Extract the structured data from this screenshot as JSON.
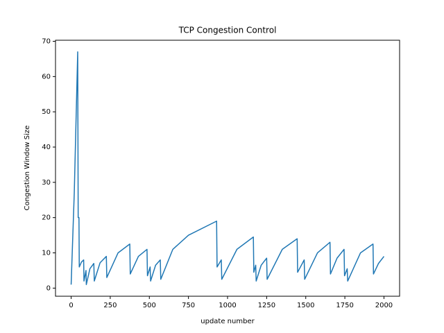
{
  "chart_data": {
    "type": "line",
    "title": "TCP Congestion Control",
    "x_label": "update number",
    "y_label": "Congestion Window Size",
    "x": [
      0,
      20,
      42,
      45,
      50,
      52,
      66,
      80,
      82,
      95,
      97,
      120,
      145,
      148,
      185,
      225,
      228,
      300,
      375,
      378,
      430,
      485,
      488,
      505,
      508,
      540,
      570,
      573,
      650,
      750,
      930,
      933,
      960,
      963,
      1060,
      1165,
      1168,
      1180,
      1183,
      1215,
      1250,
      1253,
      1350,
      1445,
      1448,
      1490,
      1493,
      1575,
      1655,
      1658,
      1700,
      1745,
      1748,
      1765,
      1768,
      1850,
      1930,
      1933,
      1965,
      2000
    ],
    "series": [
      {
        "color": "#1f77b4",
        "values": [
          1,
          27,
          67,
          20,
          20,
          6,
          7.4,
          8,
          2,
          5,
          1,
          5.5,
          7,
          2,
          7.2,
          9,
          3,
          10,
          12.5,
          4,
          9,
          11,
          3.5,
          6,
          2,
          6.5,
          8,
          2.5,
          11,
          15,
          19,
          6,
          8,
          2.5,
          11,
          14.5,
          4.5,
          6.5,
          2,
          6.5,
          8.5,
          2.5,
          11,
          14,
          4.5,
          8,
          2.5,
          10,
          13,
          4,
          8.5,
          11,
          3.5,
          5.5,
          2,
          10,
          12.5,
          4,
          7,
          9
        ]
      }
    ],
    "xlim": [
      -100,
      2100
    ],
    "ylim": [
      -2.3,
      70.3
    ],
    "xticks": [
      0,
      250,
      500,
      750,
      1000,
      1250,
      1500,
      1750,
      2000
    ],
    "yticks": [
      0,
      10,
      20,
      30,
      40,
      50,
      60,
      70
    ]
  }
}
